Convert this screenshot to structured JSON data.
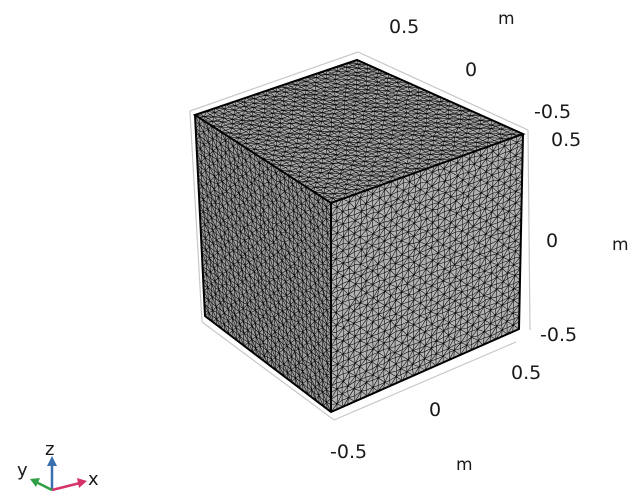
{
  "axes": {
    "top": {
      "ticks": [
        "0.5",
        "0",
        "-0.5"
      ],
      "unit": "m"
    },
    "right": {
      "ticks": [
        "0.5",
        "0",
        "-0.5"
      ],
      "unit": "m"
    },
    "bottom": {
      "ticks": [
        "0.5",
        "0",
        "-0.5"
      ],
      "unit": "m"
    }
  },
  "triad": {
    "z": "z",
    "y": "y",
    "x": "x",
    "colors": {
      "z": "#3a6fb0",
      "y": "#2f9e44",
      "x": "#d6336c"
    }
  },
  "mesh": {
    "edge_color": "#000000",
    "top_color": "#a9a9a9",
    "left_color": "#9c9c9c",
    "right_color": "#b2b2b2",
    "subdivisions": 32
  }
}
